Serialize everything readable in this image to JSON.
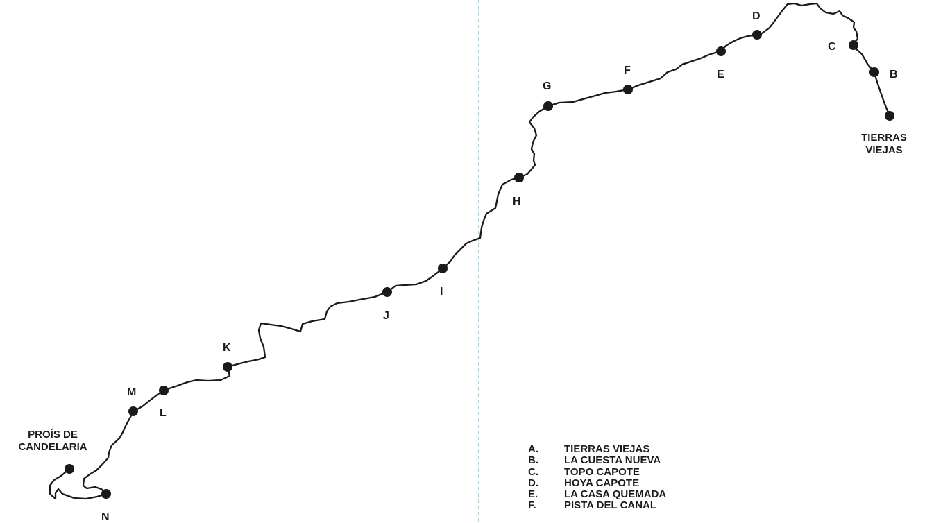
{
  "map": {
    "line_color": "#1a1a1a",
    "fold_line_color": "#7fc8e8",
    "start_label": [
      "TIERRAS",
      "VIEJAS"
    ],
    "end_label": [
      "PROÍS DE",
      "CANDELARIA"
    ],
    "stops": [
      {
        "id": "b",
        "letter": "B"
      },
      {
        "id": "c",
        "letter": "C"
      },
      {
        "id": "d",
        "letter": "D"
      },
      {
        "id": "e",
        "letter": "E"
      },
      {
        "id": "f",
        "letter": "F"
      },
      {
        "id": "g",
        "letter": "G"
      },
      {
        "id": "h",
        "letter": "H"
      },
      {
        "id": "i",
        "letter": "I"
      },
      {
        "id": "j",
        "letter": "J"
      },
      {
        "id": "k",
        "letter": "K"
      },
      {
        "id": "l",
        "letter": "L"
      },
      {
        "id": "m",
        "letter": "M"
      },
      {
        "id": "n",
        "letter": "N"
      }
    ],
    "legend": [
      {
        "key": "A.",
        "name": "TIERRAS VIEJAS"
      },
      {
        "key": "B.",
        "name": "LA CUESTA NUEVA"
      },
      {
        "key": "C.",
        "name": "TOPO CAPOTE"
      },
      {
        "key": "D.",
        "name": "HOYA CAPOTE"
      },
      {
        "key": "E.",
        "name": "LA CASA QUEMADA"
      },
      {
        "key": "F.",
        "name": "PISTA DEL CANAL"
      }
    ]
  }
}
